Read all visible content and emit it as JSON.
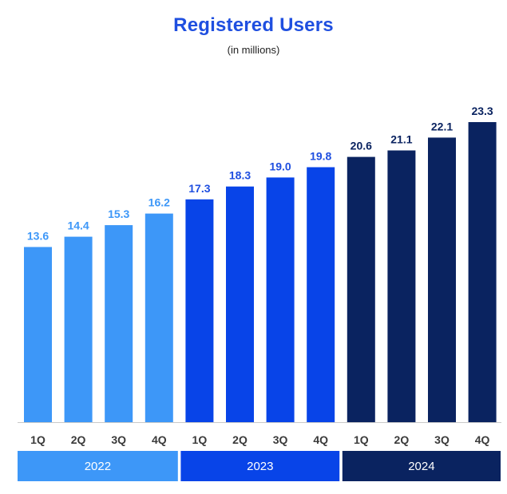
{
  "chart_data": {
    "type": "bar",
    "title": "Registered Users",
    "subtitle": "(in millions)",
    "categories": [
      "1Q",
      "2Q",
      "3Q",
      "4Q",
      "1Q",
      "2Q",
      "3Q",
      "4Q",
      "1Q",
      "2Q",
      "3Q",
      "4Q"
    ],
    "groups": [
      {
        "label": "2022",
        "color": "#3d97f8",
        "value_color": "#3d97f8",
        "values": [
          13.6,
          14.4,
          15.3,
          16.2
        ]
      },
      {
        "label": "2023",
        "color": "#0844e8",
        "value_color": "#1f4fe0",
        "values": [
          17.3,
          18.3,
          19.0,
          19.8
        ]
      },
      {
        "label": "2024",
        "color": "#0a2360",
        "value_color": "#0a2360",
        "values": [
          20.6,
          21.1,
          22.1,
          23.3
        ]
      }
    ],
    "value_labels": [
      "13.6",
      "14.4",
      "15.3",
      "16.2",
      "17.3",
      "18.3",
      "19.0",
      "19.8",
      "20.6",
      "21.1",
      "22.1",
      "23.3"
    ],
    "ylim": [
      0,
      23.3
    ],
    "xlabel": "",
    "ylabel": "",
    "grid": false,
    "legend": "none"
  }
}
